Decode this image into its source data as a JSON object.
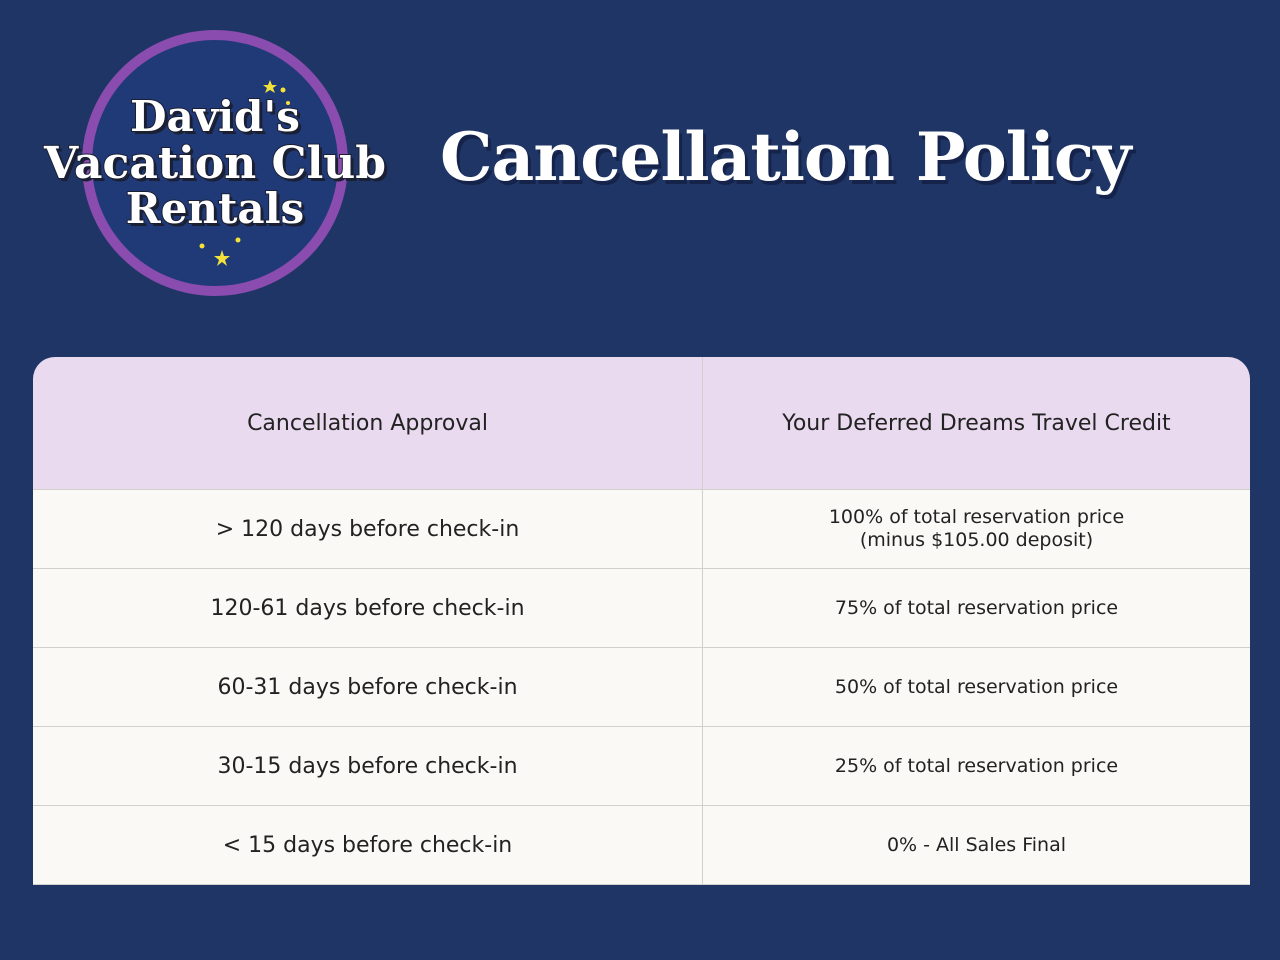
{
  "logo": {
    "lines": [
      "David's",
      "Vacation Club",
      "Rentals"
    ]
  },
  "title": "Cancellation Policy",
  "table": {
    "header": [
      "Cancellation Approval",
      "Your Deferred Dreams Travel Credit"
    ],
    "rows": [
      [
        "> 120 days before check-in",
        [
          "100% of total reservation price",
          "(minus $105.00 deposit)"
        ]
      ],
      [
        "120-61 days before check-in",
        [
          "75% of total reservation price"
        ]
      ],
      [
        "60-31 days before check-in",
        [
          "50% of total reservation price"
        ]
      ],
      [
        "30-15 days before check-in",
        [
          "25% of total reservation price"
        ]
      ],
      [
        "< 15 days before check-in",
        [
          "0% - All Sales Final"
        ]
      ]
    ]
  }
}
